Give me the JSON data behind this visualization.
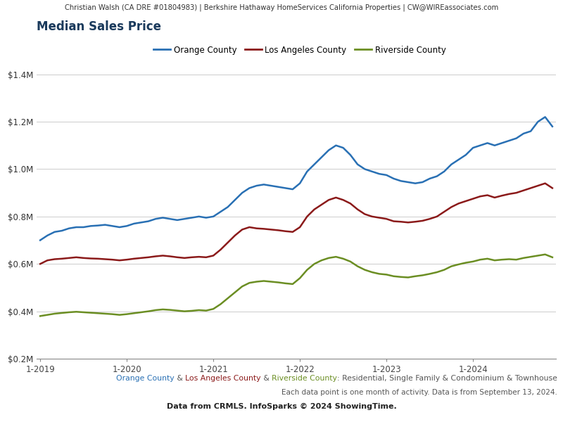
{
  "header": "Christian Walsh (CA DRE #01804983) | Berkshire Hathaway HomeServices California Properties | CW@WIREassociates.com",
  "title": "Median Sales Price",
  "title_color": "#1a3a5c",
  "footer_line1_parts": [
    {
      "text": "Orange County",
      "color": "#2970b4"
    },
    {
      "text": " & ",
      "color": "#555555"
    },
    {
      "text": "Los Angeles County",
      "color": "#8b1a1a"
    },
    {
      "text": " & ",
      "color": "#555555"
    },
    {
      "text": "Riverside County",
      "color": "#6b8e23"
    },
    {
      "text": ": Residential, Single Family & Condominium & Townhouse",
      "color": "#555555"
    }
  ],
  "footer_line2": "Each data point is one month of activity. Data is from September 13, 2024.",
  "footer_line3": "Data from CRMLS. InfoSparks © 2024 ShowingTime.",
  "legend": [
    {
      "label": "Orange County",
      "color": "#2970b4"
    },
    {
      "label": "Los Angeles County",
      "color": "#8b1a1a"
    },
    {
      "label": "Riverside County",
      "color": "#6b8e23"
    }
  ],
  "ylim": [
    200000,
    1500000
  ],
  "yticks": [
    200000,
    400000,
    600000,
    800000,
    1000000,
    1200000,
    1400000
  ],
  "ytick_labels": [
    "$0.2M",
    "$0.4M",
    "$0.6M",
    "$0.8M",
    "$1.0M",
    "$1.2M",
    "$1.4M"
  ],
  "xtick_labels": [
    "1-2019",
    "1-2020",
    "1-2021",
    "1-2022",
    "1-2023",
    "1-2024"
  ],
  "xtick_positions": [
    0,
    12,
    24,
    36,
    48,
    60
  ],
  "orange_county": [
    700000,
    720000,
    735000,
    740000,
    750000,
    755000,
    755000,
    760000,
    762000,
    765000,
    760000,
    755000,
    760000,
    770000,
    775000,
    780000,
    790000,
    795000,
    790000,
    785000,
    790000,
    795000,
    800000,
    795000,
    800000,
    820000,
    840000,
    870000,
    900000,
    920000,
    930000,
    935000,
    930000,
    925000,
    920000,
    915000,
    940000,
    990000,
    1020000,
    1050000,
    1080000,
    1100000,
    1090000,
    1060000,
    1020000,
    1000000,
    990000,
    980000,
    975000,
    960000,
    950000,
    945000,
    940000,
    945000,
    960000,
    970000,
    990000,
    1020000,
    1040000,
    1060000,
    1090000,
    1100000,
    1110000,
    1100000,
    1110000,
    1120000,
    1130000,
    1150000,
    1160000,
    1200000,
    1220000,
    1180000
  ],
  "la_county": [
    600000,
    615000,
    620000,
    622000,
    625000,
    628000,
    625000,
    623000,
    622000,
    620000,
    618000,
    615000,
    618000,
    622000,
    625000,
    628000,
    632000,
    635000,
    632000,
    628000,
    625000,
    628000,
    630000,
    628000,
    635000,
    660000,
    690000,
    720000,
    745000,
    755000,
    750000,
    748000,
    745000,
    742000,
    738000,
    735000,
    755000,
    800000,
    830000,
    850000,
    870000,
    880000,
    870000,
    855000,
    830000,
    810000,
    800000,
    795000,
    790000,
    780000,
    778000,
    775000,
    778000,
    782000,
    790000,
    800000,
    820000,
    840000,
    855000,
    865000,
    875000,
    885000,
    890000,
    880000,
    888000,
    895000,
    900000,
    910000,
    920000,
    930000,
    940000,
    920000
  ],
  "riverside_county": [
    380000,
    385000,
    390000,
    393000,
    396000,
    398000,
    396000,
    394000,
    392000,
    390000,
    388000,
    385000,
    388000,
    392000,
    396000,
    400000,
    405000,
    408000,
    406000,
    403000,
    400000,
    402000,
    405000,
    403000,
    410000,
    430000,
    455000,
    480000,
    505000,
    520000,
    525000,
    528000,
    525000,
    522000,
    518000,
    515000,
    540000,
    575000,
    600000,
    615000,
    625000,
    630000,
    622000,
    610000,
    590000,
    575000,
    565000,
    558000,
    555000,
    548000,
    545000,
    543000,
    548000,
    552000,
    558000,
    565000,
    575000,
    590000,
    598000,
    605000,
    610000,
    618000,
    622000,
    615000,
    618000,
    620000,
    618000,
    625000,
    630000,
    635000,
    640000,
    628000
  ],
  "line_width": 1.8,
  "bg_color": "#ffffff",
  "plot_bg_color": "#ffffff",
  "grid_color": "#cccccc",
  "header_bg_color": "#e0e0e0"
}
